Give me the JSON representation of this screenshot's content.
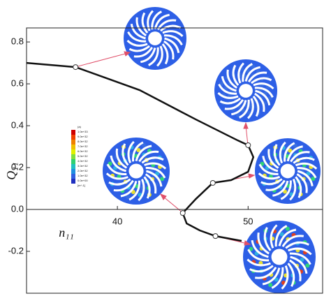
{
  "chart_data": {
    "type": "line",
    "x_label": "n₁₁",
    "y_label": "Q₁₁",
    "x": [
      33.05,
      36.8,
      41.7,
      46.0,
      49.2,
      50.0,
      50.4,
      50.0,
      48.7,
      47.3,
      46.0,
      45.0,
      45.3,
      46.3,
      47.5,
      49.5
    ],
    "y": [
      0.7,
      0.68,
      0.57,
      0.43,
      0.33,
      0.307,
      0.25,
      0.18,
      0.14,
      0.127,
      0.05,
      -0.017,
      -0.067,
      -0.1,
      -0.127,
      -0.15
    ],
    "color": "#111111",
    "points": {
      "x": [
        36.8,
        50.0,
        47.3,
        45.0,
        47.5
      ],
      "y": [
        0.68,
        0.307,
        0.127,
        -0.017,
        -0.127
      ]
    },
    "xlim": [
      33.05,
      55.7
    ],
    "ylim": [
      -0.4,
      0.867
    ],
    "xticks": [
      40,
      50
    ],
    "yticks": [
      0.8,
      0.6,
      0.4,
      0.2,
      {
        "value": 0,
        "label": "0.0"
      },
      -0.2
    ],
    "colorbar_labels": [
      "(a)",
      "1.0e+33",
      "9.0e+32",
      "8.0e+32",
      "7.0e+32",
      "6.0e+32",
      "5.0e+32",
      "4.0e+32",
      "3.0e+32",
      "2.0e+32",
      "1.0e+32",
      "0.0e+00",
      "[m^-1]"
    ]
  }
}
